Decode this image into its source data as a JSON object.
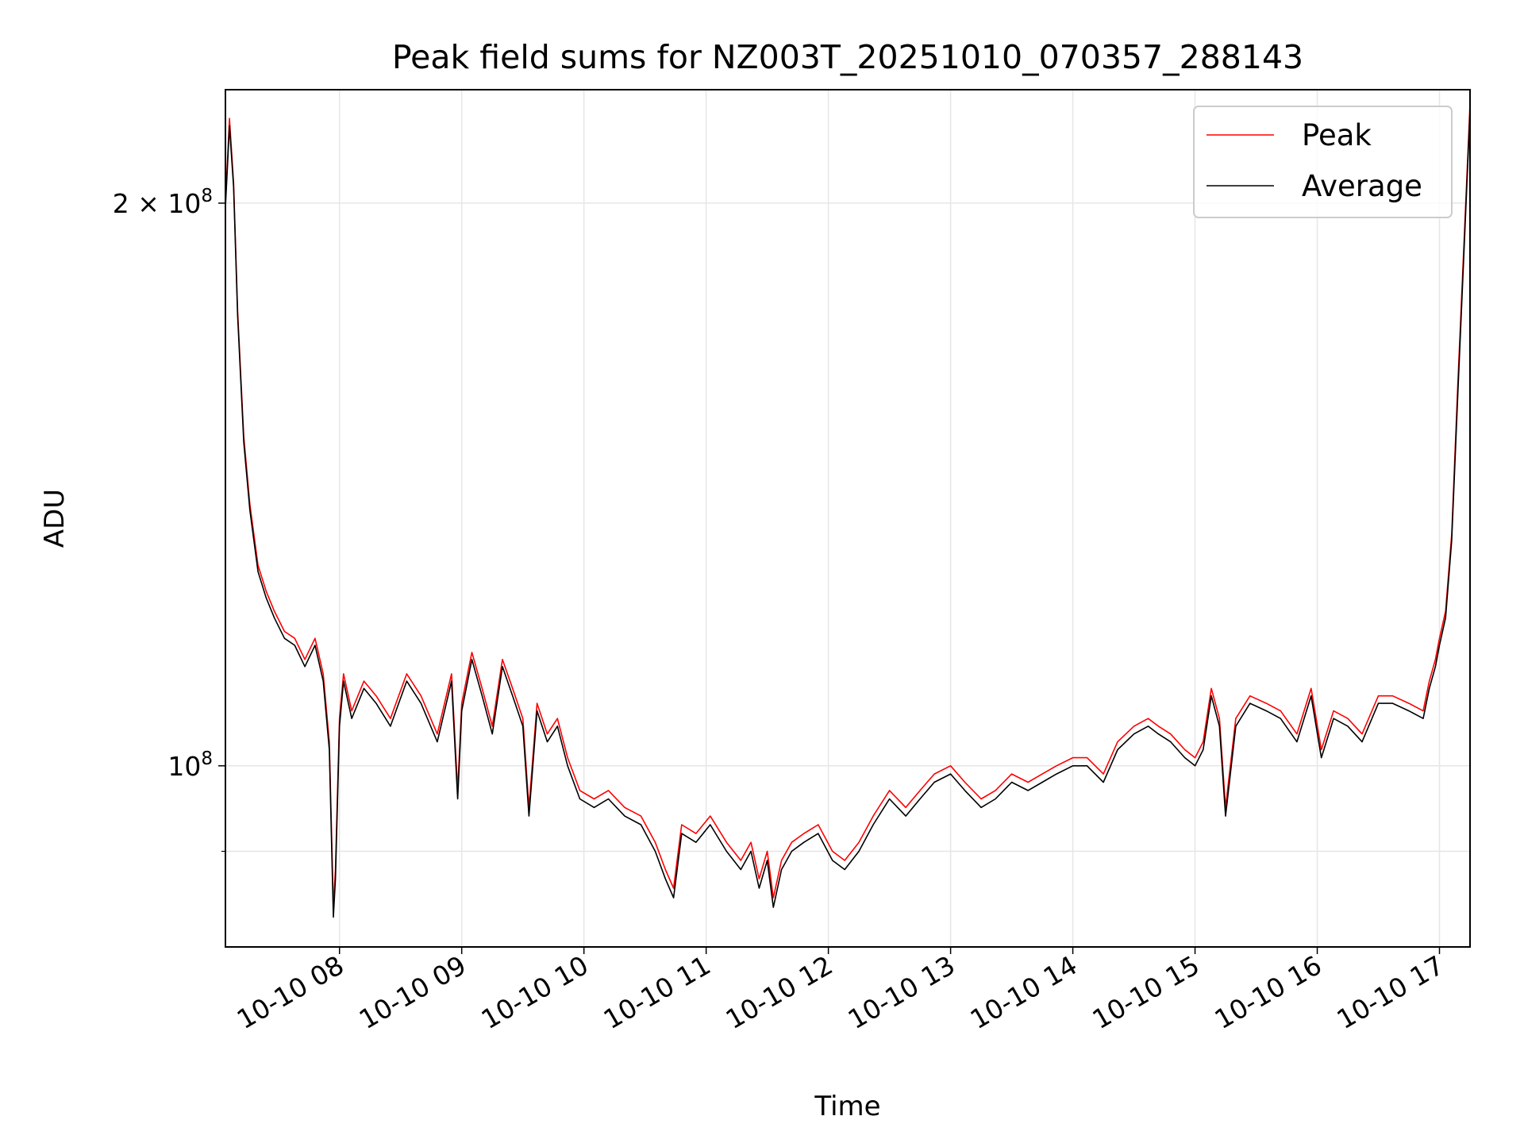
{
  "chart_data": {
    "type": "line",
    "title": "Peak field sums for NZ003T_20251010_070357_288143",
    "xlabel": "Time",
    "ylabel": "ADU",
    "x_axis": "time",
    "y_scale": "log",
    "grid": true,
    "legend_position": "top-right",
    "xlim": [
      "2025-10-10 07:04",
      "2025-10-10 17:15"
    ],
    "ylim": [
      80000000,
      230000000
    ],
    "x_tick_values": [
      "2025-10-10 08:00",
      "2025-10-10 09:00",
      "2025-10-10 10:00",
      "2025-10-10 11:00",
      "2025-10-10 12:00",
      "2025-10-10 13:00",
      "2025-10-10 14:00",
      "2025-10-10 15:00",
      "2025-10-10 16:00",
      "2025-10-10 17:00"
    ],
    "x_tick_labels": [
      "10-10 08",
      "10-10 09",
      "10-10 10",
      "10-10 11",
      "10-10 12",
      "10-10 13",
      "10-10 14",
      "10-10 15",
      "10-10 16",
      "10-10 17"
    ],
    "y_major_ticks": [
      {
        "value": 100000000,
        "label_base": "10",
        "label_exp": "8"
      },
      {
        "value": 200000000,
        "label_base": "2 × 10",
        "label_exp": "8"
      }
    ],
    "y_minor_ticks": [
      90000000
    ],
    "series": [
      {
        "name": "Peak",
        "color": "#ff0000",
        "x": [
          "2025-10-10 07:04",
          "2025-10-10 07:06",
          "2025-10-10 07:08",
          "2025-10-10 07:10",
          "2025-10-10 07:13",
          "2025-10-10 07:16",
          "2025-10-10 07:20",
          "2025-10-10 07:24",
          "2025-10-10 07:28",
          "2025-10-10 07:33",
          "2025-10-10 07:38",
          "2025-10-10 07:43",
          "2025-10-10 07:48",
          "2025-10-10 07:52",
          "2025-10-10 07:55",
          "2025-10-10 07:57",
          "2025-10-10 07:58",
          "2025-10-10 08:00",
          "2025-10-10 08:02",
          "2025-10-10 08:06",
          "2025-10-10 08:12",
          "2025-10-10 08:18",
          "2025-10-10 08:25",
          "2025-10-10 08:33",
          "2025-10-10 08:40",
          "2025-10-10 08:48",
          "2025-10-10 08:55",
          "2025-10-10 08:58",
          "2025-10-10 09:00",
          "2025-10-10 09:05",
          "2025-10-10 09:10",
          "2025-10-10 09:15",
          "2025-10-10 09:20",
          "2025-10-10 09:25",
          "2025-10-10 09:30",
          "2025-10-10 09:33",
          "2025-10-10 09:37",
          "2025-10-10 09:42",
          "2025-10-10 09:47",
          "2025-10-10 09:52",
          "2025-10-10 09:58",
          "2025-10-10 10:05",
          "2025-10-10 10:12",
          "2025-10-10 10:20",
          "2025-10-10 10:28",
          "2025-10-10 10:35",
          "2025-10-10 10:40",
          "2025-10-10 10:44",
          "2025-10-10 10:48",
          "2025-10-10 10:55",
          "2025-10-10 11:02",
          "2025-10-10 11:10",
          "2025-10-10 11:17",
          "2025-10-10 11:22",
          "2025-10-10 11:26",
          "2025-10-10 11:30",
          "2025-10-10 11:33",
          "2025-10-10 11:37",
          "2025-10-10 11:42",
          "2025-10-10 11:48",
          "2025-10-10 11:55",
          "2025-10-10 12:02",
          "2025-10-10 12:08",
          "2025-10-10 12:15",
          "2025-10-10 12:22",
          "2025-10-10 12:30",
          "2025-10-10 12:38",
          "2025-10-10 12:45",
          "2025-10-10 12:52",
          "2025-10-10 13:00",
          "2025-10-10 13:07",
          "2025-10-10 13:15",
          "2025-10-10 13:22",
          "2025-10-10 13:30",
          "2025-10-10 13:38",
          "2025-10-10 13:45",
          "2025-10-10 13:52",
          "2025-10-10 14:00",
          "2025-10-10 14:07",
          "2025-10-10 14:15",
          "2025-10-10 14:22",
          "2025-10-10 14:30",
          "2025-10-10 14:37",
          "2025-10-10 14:42",
          "2025-10-10 14:48",
          "2025-10-10 14:55",
          "2025-10-10 15:00",
          "2025-10-10 15:04",
          "2025-10-10 15:08",
          "2025-10-10 15:12",
          "2025-10-10 15:15",
          "2025-10-10 15:20",
          "2025-10-10 15:27",
          "2025-10-10 15:35",
          "2025-10-10 15:42",
          "2025-10-10 15:50",
          "2025-10-10 15:57",
          "2025-10-10 16:02",
          "2025-10-10 16:08",
          "2025-10-10 16:15",
          "2025-10-10 16:22",
          "2025-10-10 16:30",
          "2025-10-10 16:37",
          "2025-10-10 16:45",
          "2025-10-10 16:52",
          "2025-10-10 16:55",
          "2025-10-10 16:58",
          "2025-10-10 17:00",
          "2025-10-10 17:03",
          "2025-10-10 17:06",
          "2025-10-10 17:09",
          "2025-10-10 17:12",
          "2025-10-10 17:15"
        ],
        "y": [
          200000000,
          222000000,
          205000000,
          175000000,
          150000000,
          138000000,
          128000000,
          124000000,
          121000000,
          118000000,
          117000000,
          114000000,
          117000000,
          112000000,
          103000000,
          84000000,
          88000000,
          106000000,
          112000000,
          107000000,
          111000000,
          109000000,
          106000000,
          112000000,
          109000000,
          104000000,
          112000000,
          97000000,
          108000000,
          115000000,
          110000000,
          105000000,
          114000000,
          110000000,
          106000000,
          95000000,
          108000000,
          104000000,
          106000000,
          101000000,
          97000000,
          96000000,
          97000000,
          95000000,
          94000000,
          91000000,
          88000000,
          86000000,
          93000000,
          92000000,
          94000000,
          91000000,
          89000000,
          91000000,
          87000000,
          90000000,
          85000000,
          89000000,
          91000000,
          92000000,
          93000000,
          90000000,
          89000000,
          91000000,
          94000000,
          97000000,
          95000000,
          97000000,
          99000000,
          100000000,
          98000000,
          96000000,
          97000000,
          99000000,
          98000000,
          99000000,
          100000000,
          101000000,
          101000000,
          99000000,
          103000000,
          105000000,
          106000000,
          105000000,
          104000000,
          102000000,
          101000000,
          103000000,
          110000000,
          106000000,
          95000000,
          106000000,
          109000000,
          108000000,
          107000000,
          104000000,
          110000000,
          102000000,
          107000000,
          106000000,
          104000000,
          109000000,
          109000000,
          108000000,
          107000000,
          111000000,
          114000000,
          117000000,
          121000000,
          133000000,
          160000000,
          190000000,
          226000000
        ]
      },
      {
        "name": "Average",
        "color": "#000000",
        "x": [
          "2025-10-10 07:04",
          "2025-10-10 07:06",
          "2025-10-10 07:08",
          "2025-10-10 07:10",
          "2025-10-10 07:13",
          "2025-10-10 07:16",
          "2025-10-10 07:20",
          "2025-10-10 07:24",
          "2025-10-10 07:28",
          "2025-10-10 07:33",
          "2025-10-10 07:38",
          "2025-10-10 07:43",
          "2025-10-10 07:48",
          "2025-10-10 07:52",
          "2025-10-10 07:55",
          "2025-10-10 07:57",
          "2025-10-10 07:58",
          "2025-10-10 08:00",
          "2025-10-10 08:02",
          "2025-10-10 08:06",
          "2025-10-10 08:12",
          "2025-10-10 08:18",
          "2025-10-10 08:25",
          "2025-10-10 08:33",
          "2025-10-10 08:40",
          "2025-10-10 08:48",
          "2025-10-10 08:55",
          "2025-10-10 08:58",
          "2025-10-10 09:00",
          "2025-10-10 09:05",
          "2025-10-10 09:10",
          "2025-10-10 09:15",
          "2025-10-10 09:20",
          "2025-10-10 09:25",
          "2025-10-10 09:30",
          "2025-10-10 09:33",
          "2025-10-10 09:37",
          "2025-10-10 09:42",
          "2025-10-10 09:47",
          "2025-10-10 09:52",
          "2025-10-10 09:58",
          "2025-10-10 10:05",
          "2025-10-10 10:12",
          "2025-10-10 10:20",
          "2025-10-10 10:28",
          "2025-10-10 10:35",
          "2025-10-10 10:40",
          "2025-10-10 10:44",
          "2025-10-10 10:48",
          "2025-10-10 10:55",
          "2025-10-10 11:02",
          "2025-10-10 11:10",
          "2025-10-10 11:17",
          "2025-10-10 11:22",
          "2025-10-10 11:26",
          "2025-10-10 11:30",
          "2025-10-10 11:33",
          "2025-10-10 11:37",
          "2025-10-10 11:42",
          "2025-10-10 11:48",
          "2025-10-10 11:55",
          "2025-10-10 12:02",
          "2025-10-10 12:08",
          "2025-10-10 12:15",
          "2025-10-10 12:22",
          "2025-10-10 12:30",
          "2025-10-10 12:38",
          "2025-10-10 12:45",
          "2025-10-10 12:52",
          "2025-10-10 13:00",
          "2025-10-10 13:07",
          "2025-10-10 13:15",
          "2025-10-10 13:22",
          "2025-10-10 13:30",
          "2025-10-10 13:38",
          "2025-10-10 13:45",
          "2025-10-10 13:52",
          "2025-10-10 14:00",
          "2025-10-10 14:07",
          "2025-10-10 14:15",
          "2025-10-10 14:22",
          "2025-10-10 14:30",
          "2025-10-10 14:37",
          "2025-10-10 14:42",
          "2025-10-10 14:48",
          "2025-10-10 14:55",
          "2025-10-10 15:00",
          "2025-10-10 15:04",
          "2025-10-10 15:08",
          "2025-10-10 15:12",
          "2025-10-10 15:15",
          "2025-10-10 15:20",
          "2025-10-10 15:27",
          "2025-10-10 15:35",
          "2025-10-10 15:42",
          "2025-10-10 15:50",
          "2025-10-10 15:57",
          "2025-10-10 16:02",
          "2025-10-10 16:08",
          "2025-10-10 16:15",
          "2025-10-10 16:22",
          "2025-10-10 16:30",
          "2025-10-10 16:37",
          "2025-10-10 16:45",
          "2025-10-10 16:52",
          "2025-10-10 16:55",
          "2025-10-10 16:58",
          "2025-10-10 17:00",
          "2025-10-10 17:03",
          "2025-10-10 17:06",
          "2025-10-10 17:09",
          "2025-10-10 17:12",
          "2025-10-10 17:15"
        ],
        "y": [
          199000000,
          220000000,
          204000000,
          174000000,
          149000000,
          137000000,
          127000000,
          123000000,
          120000000,
          117000000,
          116000000,
          113000000,
          116000000,
          111000000,
          102000000,
          83000000,
          87000000,
          105000000,
          111000000,
          106000000,
          110000000,
          108000000,
          105000000,
          111000000,
          108000000,
          103000000,
          111000000,
          96000000,
          107000000,
          114000000,
          109000000,
          104000000,
          113000000,
          109000000,
          105000000,
          94000000,
          107000000,
          103000000,
          105000000,
          100000000,
          96000000,
          95000000,
          96000000,
          94000000,
          93000000,
          90000000,
          87000000,
          85000000,
          92000000,
          91000000,
          93000000,
          90000000,
          88000000,
          90000000,
          86000000,
          89000000,
          84000000,
          88000000,
          90000000,
          91000000,
          92000000,
          89000000,
          88000000,
          90000000,
          93000000,
          96000000,
          94000000,
          96000000,
          98000000,
          99000000,
          97000000,
          95000000,
          96000000,
          98000000,
          97000000,
          98000000,
          99000000,
          100000000,
          100000000,
          98000000,
          102000000,
          104000000,
          105000000,
          104000000,
          103000000,
          101000000,
          100000000,
          102000000,
          109000000,
          105000000,
          94000000,
          105000000,
          108000000,
          107000000,
          106000000,
          103000000,
          109000000,
          101000000,
          106000000,
          105000000,
          103000000,
          108000000,
          108000000,
          107000000,
          106000000,
          110000000,
          113000000,
          116000000,
          120000000,
          132000000,
          158000000,
          188000000,
          224000000
        ]
      }
    ]
  }
}
